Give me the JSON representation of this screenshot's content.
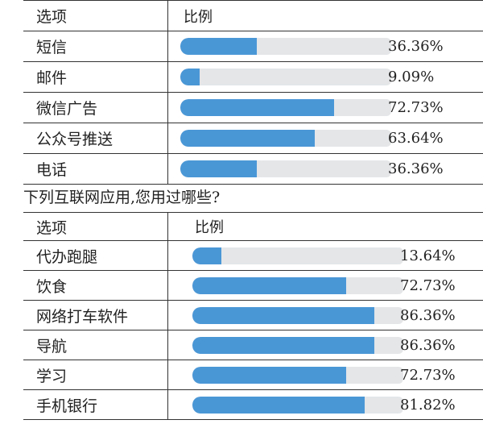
{
  "chart_data": [
    {
      "type": "table",
      "header": {
        "option": "选项",
        "ratio": "比例"
      },
      "categories": [
        "短信",
        "邮件",
        "微信广告",
        "公众号推送",
        "电话"
      ],
      "values": [
        36.36,
        9.09,
        72.73,
        63.64,
        36.36
      ],
      "labels": [
        "36.36%",
        "9.09%",
        "72.73%",
        "63.64%",
        "36.36%"
      ],
      "ylim": [
        0,
        100
      ],
      "colors": {
        "fill": "#4a97d6",
        "track": "#e4e6e8"
      }
    },
    {
      "type": "table",
      "title": "下列互联网应用,您用过哪些?",
      "header": {
        "option": "选项",
        "ratio": "比例"
      },
      "categories": [
        "代办跑腿",
        "饮食",
        "网络打车软件",
        "导航",
        "学习",
        "手机银行"
      ],
      "values": [
        13.64,
        72.73,
        86.36,
        86.36,
        72.73,
        81.82
      ],
      "labels": [
        "13.64%",
        "72.73%",
        "86.36%",
        "86.36%",
        "72.73%",
        "81.82%"
      ],
      "ylim": [
        0,
        100
      ],
      "colors": {
        "fill": "#4a97d6",
        "track": "#e4e6e8"
      }
    }
  ]
}
